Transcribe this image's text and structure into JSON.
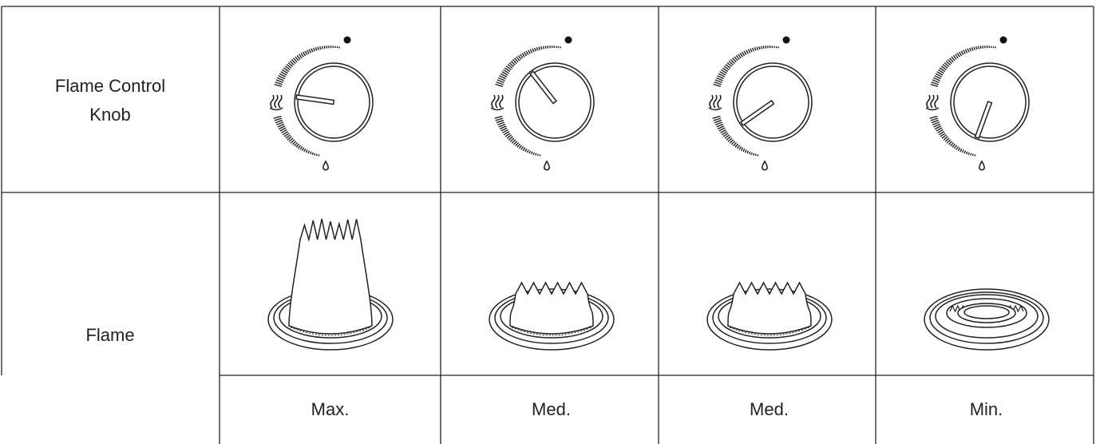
{
  "rows": [
    {
      "label": "Flame Control Knob"
    },
    {
      "label": "Flame"
    }
  ],
  "levels": [
    "Max.",
    "Med.",
    "Med.",
    "Min."
  ]
}
